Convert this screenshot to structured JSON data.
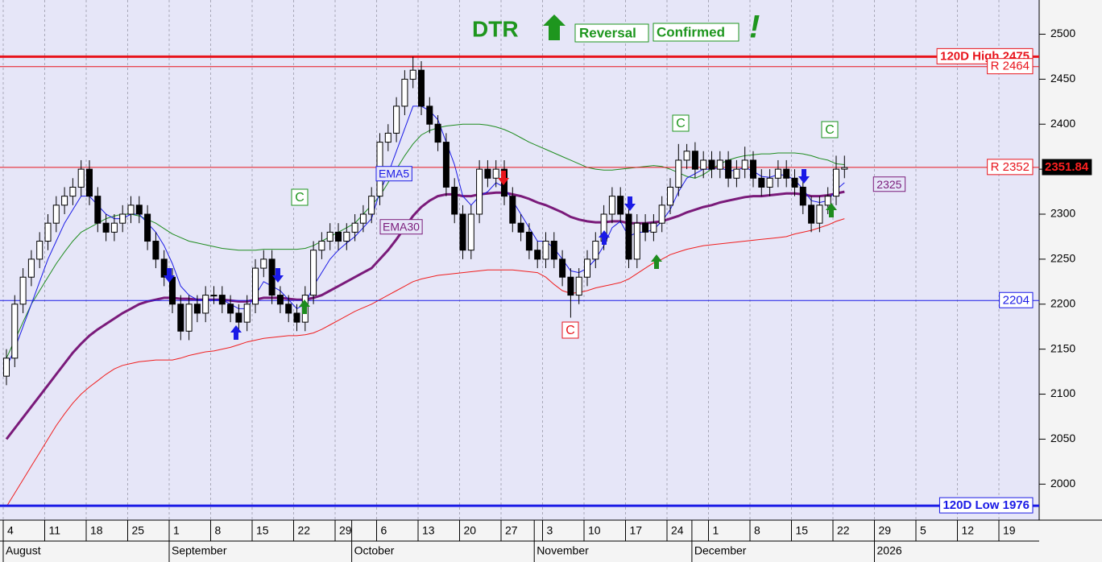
{
  "chart_data": {
    "type": "candlestick",
    "title_parts": {
      "symbol": "DTR",
      "word1": "Reversal",
      "word2": "Confirmed",
      "mark": "!"
    },
    "ylim": [
      1960,
      2538
    ],
    "yticks": [
      2000,
      2050,
      2100,
      2150,
      2200,
      2250,
      2300,
      2350,
      2400,
      2450,
      2500
    ],
    "grid": "x",
    "up_color": "#ffffff",
    "down_color": "#000000",
    "categories": [
      "4",
      null,
      null,
      null,
      null,
      "11",
      null,
      null,
      null,
      null,
      "18",
      null,
      null,
      null,
      null,
      "25",
      null,
      null,
      null,
      null,
      "1",
      null,
      null,
      null,
      null,
      "8",
      null,
      null,
      null,
      null,
      "15",
      null,
      null,
      null,
      null,
      "22",
      null,
      null,
      null,
      null,
      "29",
      null,
      null,
      null,
      null,
      "6",
      null,
      null,
      null,
      null,
      "13",
      null,
      null,
      null,
      null,
      "20",
      null,
      null,
      null,
      null,
      "27",
      null,
      null,
      null,
      null,
      "3",
      null,
      null,
      null,
      null,
      "10",
      null,
      null,
      null,
      null,
      "17",
      null,
      null,
      null,
      null,
      "24",
      null,
      null,
      null,
      null,
      "1",
      null,
      null,
      null,
      null,
      "8",
      null,
      null,
      null,
      null,
      "15",
      null,
      null,
      null,
      null,
      "22",
      null,
      null,
      null,
      null,
      "29",
      null,
      null,
      null,
      null,
      "5",
      null,
      null,
      null,
      null,
      "12",
      null,
      null,
      null,
      null,
      "19",
      null,
      null,
      null,
      null
    ],
    "month_labels": [
      "August",
      null,
      null,
      null,
      null,
      null,
      null,
      null,
      null,
      null,
      null,
      null,
      null,
      null,
      null,
      null,
      null,
      null,
      null,
      null,
      "September",
      null,
      null,
      null,
      null,
      null,
      null,
      null,
      null,
      null,
      null,
      null,
      null,
      null,
      null,
      null,
      null,
      null,
      null,
      null,
      null,
      null,
      "October",
      null,
      null,
      null,
      null,
      null,
      null,
      null,
      null,
      null,
      null,
      null,
      null,
      null,
      null,
      null,
      null,
      null,
      null,
      null,
      null,
      null,
      "November",
      null,
      null,
      null,
      null,
      null,
      null,
      null,
      null,
      null,
      null,
      null,
      null,
      null,
      null,
      null,
      null,
      null,
      null,
      "December",
      null,
      null,
      null,
      null,
      null,
      null,
      null,
      null,
      null,
      null,
      null,
      null,
      null,
      null,
      null,
      null,
      null,
      null,
      null,
      null,
      null,
      "2026",
      null,
      null,
      null,
      null,
      null,
      null,
      null,
      null,
      null,
      null,
      null,
      null,
      null,
      null,
      null
    ],
    "open": [
      2120,
      2140,
      2200,
      2230,
      2250,
      2270,
      2290,
      2310,
      2320,
      2330,
      2350,
      2320,
      2290,
      2280,
      2290,
      2300,
      2310,
      2300,
      2270,
      2250,
      2230,
      2200,
      2170,
      2200,
      2190,
      2210,
      2210,
      2200,
      2190,
      2180,
      2200,
      2240,
      2250,
      2210,
      2200,
      2190,
      2180,
      2210,
      2260,
      2270,
      2280,
      2270,
      2280,
      2290,
      2300,
      2320,
      2380,
      2390,
      2420,
      2450,
      2460,
      2420,
      2400,
      2380,
      2330,
      2300,
      2260,
      2300,
      2350,
      2340,
      2350,
      2320,
      2290,
      2280,
      2260,
      2250,
      2270,
      2250,
      2230,
      2210,
      2230,
      2250,
      2270,
      2300,
      2320,
      2300,
      2250,
      2290,
      2280,
      2290,
      2310,
      2330,
      2360,
      2370,
      2350,
      2360,
      2350,
      2360,
      2340,
      2350,
      2360,
      2340,
      2330,
      2340,
      2350,
      2340,
      2330,
      2310,
      2290,
      2310,
      2320,
      2350,
      null,
      null,
      null,
      null,
      null,
      null,
      null,
      null,
      null,
      null,
      null,
      null,
      null,
      null,
      null,
      null,
      null,
      null,
      null,
      null,
      null,
      null,
      null
    ],
    "high": [
      2150,
      2210,
      2240,
      2260,
      2280,
      2300,
      2320,
      2330,
      2340,
      2360,
      2360,
      2330,
      2300,
      2300,
      2310,
      2320,
      2320,
      2310,
      2280,
      2260,
      2240,
      2210,
      2210,
      2210,
      2220,
      2220,
      2220,
      2210,
      2200,
      2210,
      2250,
      2260,
      2260,
      2220,
      2210,
      2200,
      2220,
      2270,
      2280,
      2290,
      2290,
      2290,
      2300,
      2310,
      2330,
      2390,
      2400,
      2430,
      2460,
      2475,
      2470,
      2430,
      2410,
      2390,
      2340,
      2310,
      2310,
      2360,
      2360,
      2360,
      2360,
      2330,
      2300,
      2290,
      2270,
      2280,
      2280,
      2260,
      2240,
      2240,
      2260,
      2280,
      2310,
      2330,
      2330,
      2310,
      2300,
      2300,
      2300,
      2320,
      2340,
      2378,
      2378,
      2380,
      2370,
      2370,
      2370,
      2370,
      2360,
      2375,
      2370,
      2350,
      2350,
      2360,
      2360,
      2350,
      2340,
      2320,
      2320,
      2330,
      2365,
      2365,
      null,
      null,
      null,
      null,
      null,
      null,
      null,
      null,
      null,
      null,
      null,
      null,
      null,
      null,
      null,
      null,
      null,
      null,
      null,
      null,
      null,
      null,
      null
    ],
    "low": [
      2110,
      2130,
      2190,
      2220,
      2240,
      2260,
      2280,
      2300,
      2310,
      2320,
      2310,
      2280,
      2270,
      2270,
      2280,
      2290,
      2290,
      2260,
      2240,
      2220,
      2190,
      2160,
      2160,
      2180,
      2180,
      2200,
      2190,
      2180,
      2170,
      2170,
      2190,
      2230,
      2200,
      2190,
      2180,
      2170,
      2170,
      2200,
      2250,
      2260,
      2260,
      2260,
      2270,
      2280,
      2290,
      2310,
      2370,
      2380,
      2410,
      2440,
      2410,
      2390,
      2370,
      2320,
      2290,
      2250,
      2250,
      2290,
      2330,
      2330,
      2310,
      2280,
      2270,
      2250,
      2240,
      2240,
      2240,
      2220,
      2185,
      2200,
      2220,
      2240,
      2260,
      2290,
      2290,
      2240,
      2240,
      2270,
      2270,
      2280,
      2300,
      2320,
      2350,
      2340,
      2340,
      2340,
      2340,
      2330,
      2330,
      2340,
      2330,
      2320,
      2320,
      2330,
      2330,
      2320,
      2300,
      2280,
      2280,
      2300,
      2310,
      2340,
      null,
      null,
      null,
      null,
      null,
      null,
      null,
      null,
      null,
      null,
      null,
      null,
      null,
      null,
      null,
      null,
      null,
      null,
      null,
      null,
      null,
      null,
      null
    ],
    "close": [
      2140,
      2200,
      2230,
      2250,
      2270,
      2290,
      2310,
      2320,
      2330,
      2350,
      2320,
      2290,
      2280,
      2290,
      2300,
      2310,
      2300,
      2270,
      2250,
      2230,
      2200,
      2170,
      2200,
      2190,
      2210,
      2210,
      2200,
      2190,
      2180,
      2200,
      2240,
      2250,
      2210,
      2200,
      2190,
      2180,
      2210,
      2260,
      2270,
      2280,
      2270,
      2280,
      2290,
      2300,
      2320,
      2380,
      2390,
      2420,
      2450,
      2460,
      2420,
      2400,
      2380,
      2330,
      2300,
      2260,
      2300,
      2350,
      2340,
      2350,
      2320,
      2290,
      2280,
      2260,
      2250,
      2270,
      2250,
      2230,
      2210,
      2230,
      2250,
      2270,
      2300,
      2320,
      2300,
      2250,
      2290,
      2280,
      2290,
      2310,
      2330,
      2360,
      2370,
      2350,
      2360,
      2350,
      2360,
      2340,
      2350,
      2360,
      2340,
      2330,
      2340,
      2350,
      2340,
      2330,
      2310,
      2290,
      2310,
      2320,
      2350,
      2351.84,
      null,
      null,
      null,
      null,
      null,
      null,
      null,
      null,
      null,
      null,
      null,
      null,
      null,
      null,
      null,
      null,
      null,
      null,
      null,
      null,
      null,
      null,
      null
    ],
    "lines": [
      {
        "color": "#1e8c1e",
        "values": [
          2140,
          2160,
          2180,
          2200,
          2215,
          2230,
          2245,
          2258,
          2270,
          2280,
          2285,
          2290,
          2295,
          2298,
          2300,
          2300,
          2298,
          2294,
          2290,
          2284,
          2278,
          2274,
          2270,
          2268,
          2266,
          2264,
          2262,
          2261,
          2260,
          2260,
          2260,
          2261,
          2261,
          2261,
          2261,
          2261,
          2262,
          2265,
          2270,
          2275,
          2280,
          2285,
          2290,
          2300,
          2310,
          2320,
          2335,
          2350,
          2365,
          2378,
          2388,
          2393,
          2396,
          2398,
          2399,
          2400,
          2400,
          2400,
          2399,
          2397,
          2394,
          2390,
          2385,
          2380,
          2376,
          2372,
          2368,
          2364,
          2360,
          2356,
          2352,
          2350,
          2349,
          2349,
          2350,
          2351,
          2352,
          2353,
          2354,
          2353,
          2350,
          2346,
          2342,
          2340,
          2344,
          2350,
          2356,
          2360,
          2363,
          2365,
          2366,
          2367,
          2367,
          2368,
          2368,
          2368,
          2367,
          2365,
          2362,
          2360,
          2356,
          2355,
          null,
          null,
          null,
          null,
          null,
          null,
          null,
          null,
          null,
          null,
          null,
          null,
          null,
          null,
          null,
          null,
          null,
          null,
          null,
          null,
          null,
          null,
          null
        ]
      },
      {
        "color": "#f01e1e",
        "values": [
          1975,
          1990,
          2005,
          2020,
          2035,
          2050,
          2065,
          2078,
          2090,
          2100,
          2108,
          2115,
          2122,
          2128,
          2132,
          2134,
          2136,
          2137,
          2138,
          2138,
          2138,
          2140,
          2143,
          2145,
          2147,
          2148,
          2150,
          2152,
          2155,
          2158,
          2160,
          2162,
          2163,
          2164,
          2165,
          2165,
          2166,
          2168,
          2172,
          2177,
          2182,
          2187,
          2192,
          2196,
          2200,
          2205,
          2210,
          2215,
          2220,
          2225,
          2228,
          2230,
          2232,
          2233,
          2234,
          2235,
          2236,
          2237,
          2238,
          2238,
          2238,
          2238,
          2237,
          2236,
          2235,
          2230,
          2222,
          2215,
          2212,
          2213,
          2215,
          2218,
          2220,
          2222,
          2224,
          2228,
          2234,
          2240,
          2246,
          2250,
          2255,
          2258,
          2261,
          2263,
          2265,
          2266,
          2267,
          2268,
          2269,
          2270,
          2271,
          2272,
          2273,
          2274,
          2275,
          2278,
          2280,
          2282,
          2285,
          2288,
          2292,
          2295,
          null,
          null,
          null,
          null,
          null,
          null,
          null,
          null,
          null,
          null,
          null,
          null,
          null,
          null,
          null,
          null,
          null,
          null,
          null,
          null,
          null,
          null,
          null
        ]
      },
      {
        "name": "EMA30",
        "color": "#7a1a7a",
        "heavy": true,
        "values": [
          2050,
          2062,
          2074,
          2086,
          2098,
          2110,
          2122,
          2134,
          2146,
          2156,
          2165,
          2172,
          2178,
          2184,
          2190,
          2195,
          2200,
          2203,
          2205,
          2207,
          2207,
          2206,
          2206,
          2205,
          2205,
          2205,
          2205,
          2204,
          2203,
          2203,
          2205,
          2207,
          2207,
          2207,
          2206,
          2205,
          2205,
          2207,
          2210,
          2215,
          2220,
          2225,
          2230,
          2235,
          2240,
          2250,
          2260,
          2272,
          2285,
          2298,
          2308,
          2315,
          2320,
          2322,
          2322,
          2320,
          2320,
          2322,
          2323,
          2324,
          2324,
          2322,
          2320,
          2317,
          2313,
          2310,
          2306,
          2302,
          2297,
          2294,
          2292,
          2291,
          2291,
          2292,
          2292,
          2290,
          2290,
          2290,
          2291,
          2292,
          2295,
          2298,
          2302,
          2305,
          2308,
          2310,
          2313,
          2315,
          2317,
          2319,
          2320,
          2320,
          2321,
          2322,
          2323,
          2323,
          2322,
          2320,
          2320,
          2321,
          2323,
          2325,
          null,
          null,
          null,
          null,
          null,
          null,
          null,
          null,
          null,
          null,
          null,
          null,
          null,
          null,
          null,
          null,
          null,
          null,
          null,
          null,
          null,
          null,
          null
        ]
      },
      {
        "name": "EMA5",
        "color": "#1a1ae6",
        "values": [
          2130,
          2150,
          2175,
          2200,
          2225,
          2250,
          2270,
          2290,
          2305,
          2320,
          2320,
          2310,
          2300,
          2295,
          2295,
          2300,
          2300,
          2290,
          2280,
          2265,
          2245,
          2220,
          2210,
          2205,
          2205,
          2205,
          2205,
          2200,
          2195,
          2195,
          2210,
          2225,
          2220,
          2215,
          2205,
          2195,
          2200,
          2220,
          2235,
          2250,
          2260,
          2268,
          2275,
          2285,
          2295,
          2325,
          2345,
          2370,
          2395,
          2420,
          2420,
          2415,
          2405,
          2380,
          2355,
          2320,
          2310,
          2320,
          2325,
          2335,
          2330,
          2315,
          2300,
          2285,
          2270,
          2270,
          2262,
          2250,
          2237,
          2235,
          2240,
          2250,
          2265,
          2285,
          2292,
          2275,
          2280,
          2280,
          2283,
          2292,
          2305,
          2325,
          2340,
          2345,
          2350,
          2350,
          2352,
          2348,
          2349,
          2352,
          2348,
          2342,
          2341,
          2344,
          2343,
          2338,
          2328,
          2315,
          2313,
          2315,
          2327,
          2335,
          null,
          null,
          null,
          null,
          null,
          null,
          null,
          null,
          null,
          null,
          null,
          null,
          null,
          null,
          null,
          null,
          null,
          null,
          null,
          null,
          null,
          null,
          null
        ]
      }
    ],
    "levels": [
      {
        "label": "120D High 2475",
        "value": 2475,
        "color": "#e8141c",
        "heavy": true
      },
      {
        "label": "R 2464",
        "value": 2464,
        "color": "#e8141c"
      },
      {
        "label": "R 2352",
        "value": 2352,
        "color": "#e8141c"
      },
      {
        "label": "2204",
        "value": 2204,
        "color": "#1a1ae6"
      },
      {
        "label": "120D Low 1976",
        "value": 1976,
        "color": "#1a1ae6",
        "heavy": true
      }
    ],
    "c_labels": [
      "C",
      "C",
      "C",
      "C"
    ]
  }
}
